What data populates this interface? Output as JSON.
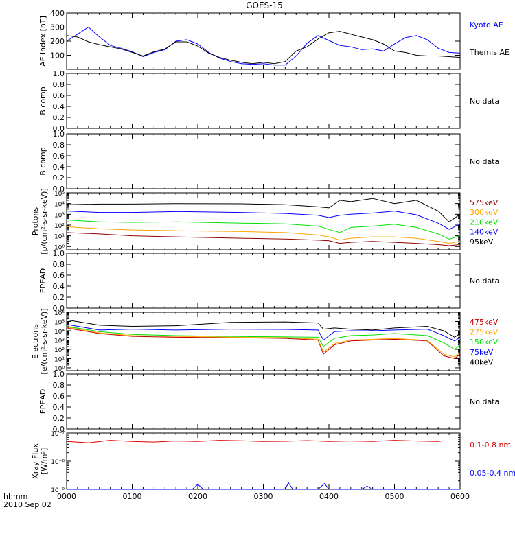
{
  "title": "GOES-15",
  "time_labels": {
    "line1": "hhmm",
    "line2": "2010 Sep 02"
  },
  "colors": {
    "axis": "#000000",
    "black": "#000000",
    "blue": "#0000ff",
    "green": "#00e000",
    "orange": "#ffa500",
    "red": "#c00000",
    "darkred": "#8b0000",
    "xray_red": "#dd0000"
  },
  "chart_data": [
    {
      "type": "line",
      "panel": "ae",
      "ylabel": "AE index [nT]",
      "ylim": [
        0,
        400
      ],
      "yticks": [
        100,
        200,
        300,
        400
      ],
      "xlim": [
        0,
        360
      ],
      "xticks": [
        "0000",
        "0100",
        "0200",
        "0300",
        "0400",
        "0500",
        "0600"
      ],
      "series": [
        {
          "name": "Kyoto AE",
          "color": "blue",
          "x": [
            0,
            10,
            20,
            30,
            40,
            50,
            60,
            70,
            80,
            90,
            100,
            110,
            120,
            130,
            140,
            150,
            160,
            170,
            180,
            190,
            200,
            210,
            220,
            230,
            240,
            250,
            260,
            270,
            280,
            290,
            300,
            310,
            320,
            330,
            340,
            350,
            360
          ],
          "values": [
            200,
            250,
            300,
            230,
            170,
            150,
            125,
            90,
            120,
            140,
            200,
            210,
            180,
            120,
            80,
            55,
            40,
            35,
            40,
            30,
            30,
            95,
            185,
            240,
            205,
            170,
            160,
            140,
            145,
            130,
            180,
            225,
            240,
            210,
            150,
            120,
            115
          ]
        },
        {
          "name": "Themis AE",
          "color": "black",
          "x": [
            0,
            10,
            20,
            30,
            40,
            50,
            60,
            70,
            80,
            90,
            100,
            110,
            120,
            130,
            140,
            150,
            160,
            170,
            180,
            190,
            200,
            210,
            220,
            230,
            240,
            250,
            260,
            270,
            280,
            290,
            300,
            310,
            320,
            330,
            340,
            350,
            360
          ],
          "values": [
            240,
            230,
            195,
            175,
            160,
            145,
            120,
            95,
            125,
            145,
            195,
            195,
            165,
            115,
            85,
            65,
            50,
            40,
            50,
            40,
            55,
            130,
            160,
            215,
            260,
            270,
            250,
            230,
            210,
            180,
            130,
            120,
            100,
            95,
            95,
            90,
            85
          ]
        }
      ]
    },
    {
      "type": "line",
      "panel": "bcomp1",
      "ylabel": "B comp",
      "ylim": [
        0,
        1
      ],
      "yticks": [
        0.0,
        0.2,
        0.4,
        0.6,
        0.8,
        1.0
      ],
      "status": "No data",
      "series": []
    },
    {
      "type": "line",
      "panel": "bcomp2",
      "ylabel": "B comp",
      "ylim": [
        0,
        1
      ],
      "yticks": [
        0.0,
        0.2,
        0.4,
        0.6,
        0.8,
        1.0
      ],
      "status": "No data",
      "series": []
    },
    {
      "type": "line",
      "panel": "protons",
      "scale": "log",
      "ylabel": "Protons",
      "ylabel2": "[p/(cm²-s-sr-keV)]",
      "ylim": [
        0.5,
        100000
      ],
      "yticks": [
        "10⁰",
        "10¹",
        "10²",
        "10³",
        "10⁴",
        "10⁵"
      ],
      "xlim": [
        0,
        360
      ],
      "series": [
        {
          "name": "575keV",
          "color": "darkred",
          "x": [
            0,
            30,
            60,
            100,
            160,
            200,
            230,
            240,
            250,
            260,
            280,
            300,
            320,
            340,
            350,
            360
          ],
          "values": [
            20,
            15,
            10,
            8,
            6,
            5,
            4,
            3.5,
            2,
            2.5,
            3,
            2.5,
            2,
            1.5,
            1.2,
            1.5
          ]
        },
        {
          "name": "300keV",
          "color": "orange",
          "x": [
            0,
            30,
            60,
            100,
            160,
            200,
            230,
            240,
            250,
            260,
            280,
            300,
            320,
            340,
            350,
            360
          ],
          "values": [
            70,
            45,
            35,
            30,
            25,
            20,
            12,
            8,
            4,
            6,
            8,
            8,
            6,
            3,
            2,
            3
          ]
        },
        {
          "name": "210keV",
          "color": "green",
          "x": [
            0,
            30,
            60,
            100,
            160,
            200,
            230,
            240,
            250,
            260,
            280,
            300,
            320,
            340,
            350,
            360
          ],
          "values": [
            300,
            200,
            180,
            200,
            150,
            130,
            80,
            40,
            20,
            60,
            80,
            120,
            60,
            15,
            5,
            10
          ]
        },
        {
          "name": "140keV",
          "color": "blue",
          "x": [
            0,
            30,
            60,
            100,
            160,
            200,
            230,
            240,
            250,
            260,
            280,
            300,
            320,
            340,
            350,
            360
          ],
          "values": [
            2000,
            1500,
            1500,
            1800,
            1500,
            1200,
            800,
            500,
            800,
            1000,
            1300,
            2000,
            900,
            150,
            40,
            120
          ]
        },
        {
          "name": "95keV",
          "color": "black",
          "x": [
            0,
            30,
            60,
            100,
            160,
            200,
            230,
            240,
            250,
            260,
            280,
            300,
            320,
            340,
            350,
            360
          ],
          "values": [
            8000,
            9000,
            9000,
            10000,
            9500,
            8000,
            5000,
            4000,
            20000,
            15000,
            30000,
            10000,
            20000,
            2000,
            200,
            1000
          ]
        }
      ]
    },
    {
      "type": "line",
      "panel": "epead1",
      "ylabel": "EPEAD",
      "ylim": [
        0,
        1
      ],
      "yticks": [
        0.0,
        0.2,
        0.4,
        0.6,
        0.8,
        1.0
      ],
      "status": "No data",
      "series": []
    },
    {
      "type": "line",
      "panel": "electrons",
      "scale": "log",
      "ylabel": "Electrons",
      "ylabel2": "[e/(cm²-s-sr-keV)]",
      "ylim": [
        0.5,
        1000000
      ],
      "yticks": [
        "10⁰",
        "10¹",
        "10²",
        "10³",
        "10⁴",
        "10⁵",
        "10⁶"
      ],
      "xlim": [
        0,
        360
      ],
      "series": [
        {
          "name": "475keV",
          "color": "red",
          "x": [
            0,
            30,
            60,
            100,
            150,
            200,
            230,
            235,
            245,
            260,
            280,
            300,
            330,
            345,
            355,
            360
          ],
          "values": [
            20000,
            5000,
            2500,
            2000,
            1800,
            1500,
            1000,
            30,
            300,
            800,
            1000,
            1200,
            800,
            20,
            10,
            30
          ]
        },
        {
          "name": "275keV",
          "color": "orange",
          "x": [
            0,
            30,
            60,
            100,
            150,
            200,
            230,
            235,
            245,
            260,
            280,
            300,
            330,
            345,
            355,
            360
          ],
          "values": [
            25000,
            6000,
            3000,
            2500,
            2000,
            1800,
            1200,
            50,
            400,
            1000,
            1200,
            1500,
            900,
            30,
            15,
            40
          ]
        },
        {
          "name": "150keV",
          "color": "green",
          "x": [
            0,
            30,
            60,
            100,
            150,
            200,
            230,
            235,
            245,
            260,
            280,
            300,
            330,
            345,
            355,
            360
          ],
          "values": [
            30000,
            8000,
            4000,
            3000,
            2500,
            2200,
            2000,
            200,
            1500,
            3000,
            3500,
            5000,
            3000,
            500,
            100,
            300
          ]
        },
        {
          "name": "75keV",
          "color": "blue",
          "x": [
            0,
            30,
            60,
            100,
            150,
            200,
            230,
            235,
            245,
            260,
            280,
            300,
            330,
            345,
            355,
            360
          ],
          "values": [
            50000,
            12000,
            15000,
            12000,
            15000,
            14000,
            12000,
            1000,
            8000,
            10000,
            10000,
            12000,
            15000,
            3000,
            800,
            2000
          ]
        },
        {
          "name": "40keV",
          "color": "black",
          "x": [
            0,
            30,
            60,
            100,
            150,
            200,
            230,
            235,
            245,
            260,
            280,
            300,
            330,
            345,
            355,
            360
          ],
          "values": [
            150000,
            40000,
            30000,
            35000,
            80000,
            90000,
            70000,
            15000,
            20000,
            15000,
            12000,
            20000,
            30000,
            10000,
            2000,
            5000
          ]
        }
      ]
    },
    {
      "type": "line",
      "panel": "epead2",
      "ylabel": "EPEAD",
      "ylim": [
        0,
        1
      ],
      "yticks": [
        0.0,
        0.2,
        0.4,
        0.6,
        0.8,
        1.0
      ],
      "status": "No data",
      "series": []
    },
    {
      "type": "line",
      "panel": "xray",
      "scale": "log",
      "ylabel": "Xray Flux",
      "ylabel2": "[W/m²]",
      "ylim": [
        1e-09,
        1e-07
      ],
      "yticks": [
        "10⁻⁹",
        "10⁻⁸",
        "10⁻⁷"
      ],
      "xlim": [
        0,
        360
      ],
      "series": [
        {
          "name": "0.1-0.8 nm",
          "color": "xray_red",
          "x": [
            0,
            20,
            40,
            60,
            80,
            100,
            120,
            140,
            160,
            180,
            200,
            220,
            240,
            260,
            280,
            300,
            320,
            340,
            345
          ],
          "values": [
            5e-08,
            4.5e-08,
            5.5e-08,
            5e-08,
            4.8e-08,
            5.2e-08,
            5e-08,
            5.5e-08,
            5.3e-08,
            5e-08,
            5.1e-08,
            5.4e-08,
            5e-08,
            5.2e-08,
            5e-08,
            5.5e-08,
            5.2e-08,
            5e-08,
            5.3e-08
          ]
        },
        {
          "name": "0.05-0.4 nm",
          "color": "blue",
          "x": [
            0,
            115,
            120,
            125,
            200,
            203,
            207,
            230,
            236,
            240,
            270,
            275,
            280,
            360
          ],
          "values": [
            1e-09,
            1e-09,
            1.5e-09,
            1e-09,
            1e-09,
            1.7e-09,
            1e-09,
            1e-09,
            1.6e-09,
            1e-09,
            1e-09,
            1.3e-09,
            1e-09,
            1e-09
          ]
        }
      ]
    }
  ]
}
